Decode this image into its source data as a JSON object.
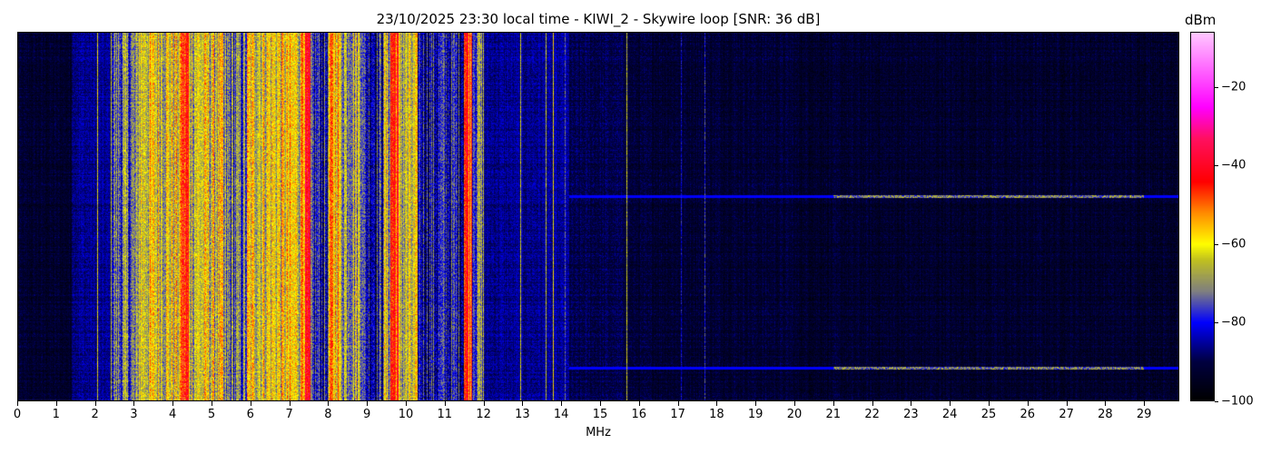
{
  "chart_data": {
    "type": "heatmap",
    "title": "23/10/2025 23:30 local time - KIWI_2 - Skywire loop [SNR: 36 dB]",
    "xlabel": "MHz",
    "xlim": [
      0,
      30
    ],
    "xticks": [
      "0",
      "1",
      "2",
      "3",
      "4",
      "5",
      "6",
      "7",
      "8",
      "9",
      "10",
      "11",
      "12",
      "13",
      "14",
      "15",
      "16",
      "17",
      "18",
      "19",
      "20",
      "21",
      "22",
      "23",
      "24",
      "25",
      "26",
      "27",
      "28",
      "29"
    ],
    "colorbar": {
      "label": "dBm",
      "range": [
        -100,
        -6
      ],
      "ticks": [
        "-20",
        "-40",
        "-60",
        "-80",
        "-100"
      ],
      "tick_values": [
        -20,
        -40,
        -60,
        -80,
        -100
      ],
      "colormap": [
        [
          -100,
          "#000000"
        ],
        [
          -90,
          "#000040"
        ],
        [
          -80,
          "#0000ff"
        ],
        [
          -72,
          "#808080"
        ],
        [
          -64,
          "#c0c020"
        ],
        [
          -60,
          "#ffff00"
        ],
        [
          -52,
          "#ff8c00"
        ],
        [
          -44,
          "#ff0000"
        ],
        [
          -33,
          "#ff1060"
        ],
        [
          -25,
          "#ff00ff"
        ],
        [
          -6,
          "#ffc8ff"
        ]
      ]
    },
    "band_levels_dBm": [
      [
        0,
        1.4,
        -93
      ],
      [
        1.4,
        2.4,
        -86
      ],
      [
        2.4,
        3.1,
        -74
      ],
      [
        3.1,
        4.2,
        -62
      ],
      [
        4.2,
        4.4,
        -46
      ],
      [
        4.4,
        5.3,
        -63
      ],
      [
        5.3,
        5.9,
        -74
      ],
      [
        5.9,
        7.3,
        -61
      ],
      [
        7.3,
        7.55,
        -47
      ],
      [
        7.55,
        8.0,
        -80
      ],
      [
        8.0,
        8.3,
        -56
      ],
      [
        8.3,
        8.9,
        -66
      ],
      [
        8.9,
        9.4,
        -80
      ],
      [
        9.4,
        9.6,
        -66
      ],
      [
        9.6,
        9.8,
        -45
      ],
      [
        9.8,
        10.3,
        -66
      ],
      [
        10.3,
        11.5,
        -81
      ],
      [
        11.5,
        11.7,
        -45
      ],
      [
        11.7,
        12.0,
        -72
      ],
      [
        12.0,
        14.2,
        -86
      ],
      [
        14.2,
        15.7,
        -90
      ],
      [
        15.7,
        30,
        -93
      ]
    ],
    "narrow_carriers_MHz": [
      [
        2.05,
        -62
      ],
      [
        12.95,
        -65
      ],
      [
        13.6,
        -66
      ],
      [
        13.8,
        -60
      ],
      [
        14.1,
        -75
      ],
      [
        15.7,
        -65
      ],
      [
        17.1,
        -82
      ],
      [
        17.7,
        -78
      ]
    ],
    "horizontal_interference": [
      {
        "time_fraction": 0.445,
        "from_MHz": 14.2,
        "to_MHz": 30,
        "level_dBm": -80
      },
      {
        "time_fraction": 0.91,
        "from_MHz": 14.2,
        "to_MHz": 30,
        "level_dBm": -80
      }
    ]
  }
}
